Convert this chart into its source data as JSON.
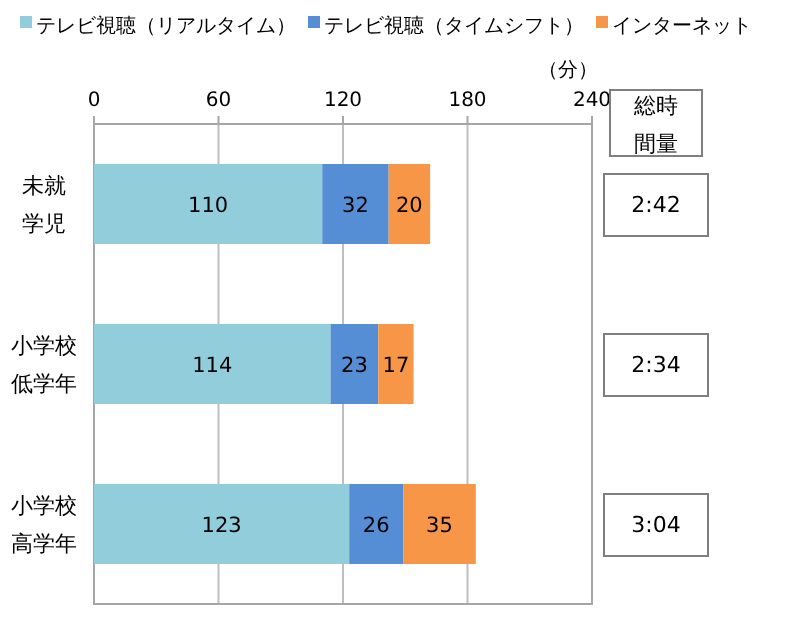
{
  "chart_data": {
    "type": "bar",
    "orientation": "horizontal",
    "stacked": true,
    "categories": [
      "未就学児",
      "小学校低学年",
      "小学校高学年"
    ],
    "series": [
      {
        "name": "テレビ視聴（リアルタイム）",
        "color": "#92cddc",
        "values": [
          110,
          114,
          123
        ]
      },
      {
        "name": "テレビ視聴（タイムシフト）",
        "color": "#558ed5",
        "values": [
          32,
          23,
          26
        ]
      },
      {
        "name": "インターネット",
        "color": "#f79646",
        "values": [
          20,
          17,
          35
        ]
      }
    ],
    "xlim": [
      0,
      240
    ],
    "xticks": [
      0,
      60,
      120,
      180,
      240
    ],
    "xlabel": "（分）",
    "grid": "x",
    "legend": "top",
    "data_labels": true,
    "annotations": [
      "総時間量",
      "2:42",
      "2:34",
      "3:04"
    ]
  }
}
